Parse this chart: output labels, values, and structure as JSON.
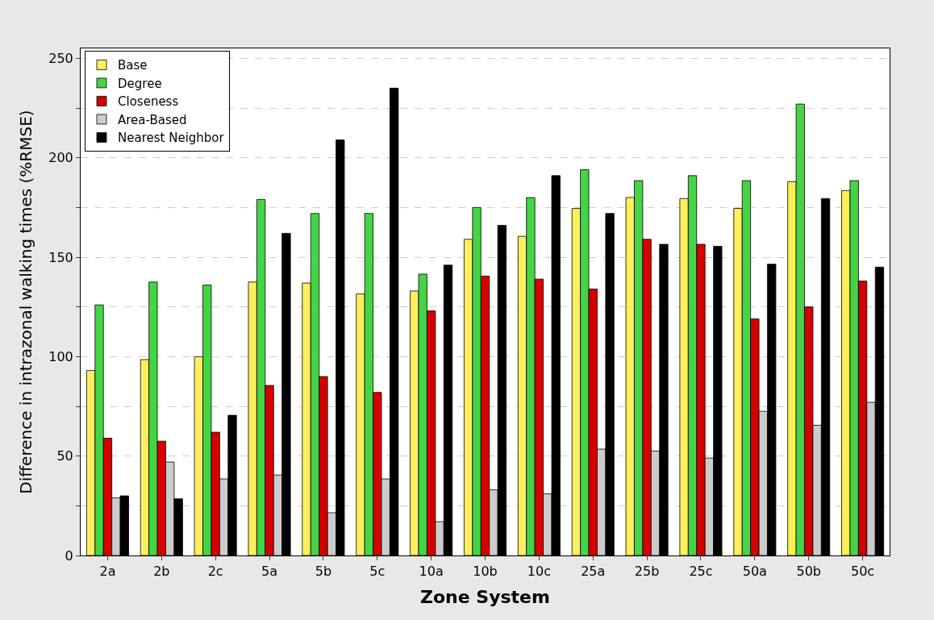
{
  "chart_data": {
    "type": "bar",
    "xlabel": "Zone System",
    "ylabel": "Difference in intrazonal walking times (%RMSE)",
    "categories": [
      "2a",
      "2b",
      "2c",
      "5a",
      "5b",
      "5c",
      "10a",
      "10b",
      "10c",
      "25a",
      "25b",
      "25c",
      "50a",
      "50b",
      "50c"
    ],
    "series": [
      {
        "name": "Base",
        "color": "#ffef5a",
        "values": [
          93,
          98.5,
          100,
          137.5,
          137,
          131.5,
          133,
          159,
          160.5,
          174.5,
          180,
          179.5,
          174.5,
          188,
          183.5
        ]
      },
      {
        "name": "Degree",
        "color": "#44d444",
        "values": [
          126,
          137.5,
          136,
          179,
          172,
          172,
          141.5,
          175,
          180,
          194,
          188.5,
          191,
          188.5,
          227,
          188.5
        ]
      },
      {
        "name": "Closeness",
        "color": "#d40000",
        "values": [
          59,
          57.5,
          62,
          85.5,
          90,
          82,
          123,
          140.5,
          139,
          134,
          159,
          156.5,
          119,
          125,
          138
        ]
      },
      {
        "name": "Area-Based",
        "color": "#cccccc",
        "values": [
          29,
          47,
          38.5,
          40.5,
          21.5,
          38.5,
          17,
          33,
          31,
          53.5,
          52.5,
          49,
          72.5,
          65.5,
          77
        ]
      },
      {
        "name": "Nearest Neighbor",
        "color": "#000000",
        "values": [
          30,
          28.5,
          70.5,
          162,
          209,
          235,
          146,
          166,
          191,
          172,
          156.5,
          155.5,
          146.5,
          179.5,
          145
        ]
      }
    ],
    "ylim": [
      0,
      255
    ],
    "yticks": [
      0,
      {
        "value": 25,
        "label": null
      },
      50,
      {
        "value": 75,
        "label": null
      },
      100,
      {
        "value": 125,
        "label": null
      },
      150,
      {
        "value": 175,
        "label": null
      },
      200,
      {
        "value": 225,
        "label": null
      },
      250
    ],
    "grid": "y",
    "legend": "top left"
  }
}
